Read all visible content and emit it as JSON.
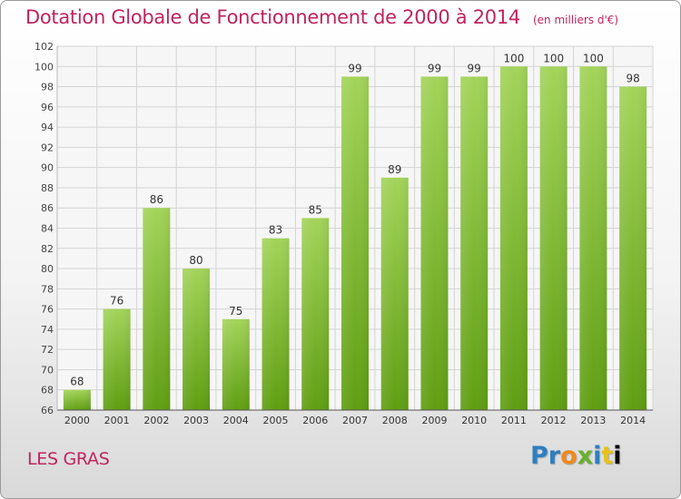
{
  "title": "Dotation Globale de Fonctionnement de 2000 à 2014",
  "unit_note": "(en milliers d'€)",
  "commune": "LES GRAS",
  "logo_text": "Proxiti",
  "colors": {
    "title": "#c0245f",
    "bar_top": "#a3d45a",
    "bar_bottom": "#5f9e12"
  },
  "chart_data": {
    "type": "bar",
    "title": "Dotation Globale de Fonctionnement de 2000 à 2014",
    "xlabel": "",
    "ylabel": "",
    "categories": [
      "2000",
      "2001",
      "2002",
      "2003",
      "2004",
      "2005",
      "2006",
      "2007",
      "2008",
      "2009",
      "2010",
      "2011",
      "2012",
      "2013",
      "2014"
    ],
    "values": [
      68,
      76,
      86,
      80,
      75,
      83,
      85,
      99,
      89,
      99,
      99,
      100,
      100,
      100,
      98
    ],
    "ylim": [
      66,
      102
    ],
    "yticks": [
      66,
      68,
      70,
      72,
      74,
      76,
      78,
      80,
      82,
      84,
      86,
      88,
      90,
      92,
      94,
      96,
      98,
      100,
      102
    ],
    "grid": true,
    "legend": "none"
  }
}
